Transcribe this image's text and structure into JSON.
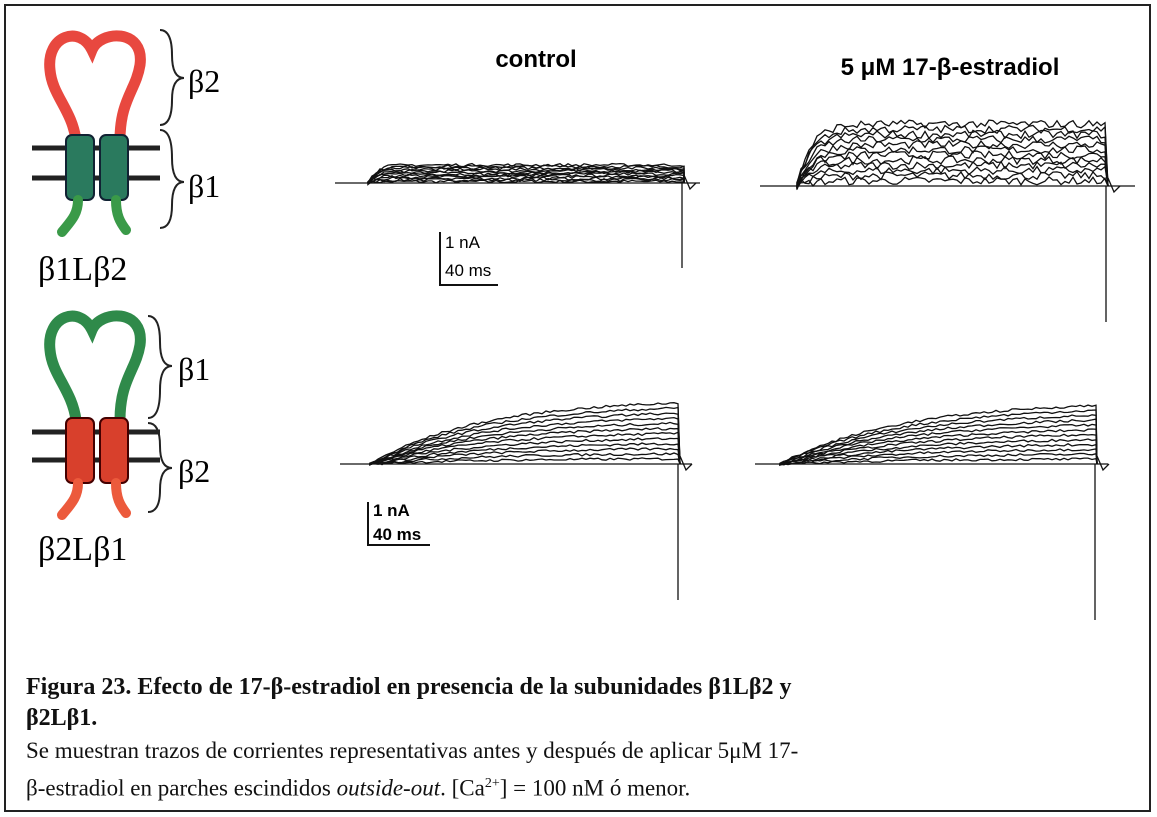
{
  "panels": [
    {
      "construct": "β1Lβ2",
      "loop_label": "β2",
      "tm_label": "β1"
    },
    {
      "construct": "β2Lβ1",
      "loop_label": "β1",
      "tm_label": "β2"
    }
  ],
  "conditions": [
    "control",
    "5 μM 17-β-estradiol"
  ],
  "scale_bars": [
    {
      "current": "1 nA",
      "time": "40 ms"
    },
    {
      "current": "1 nA",
      "time": "40 ms"
    }
  ],
  "caption": {
    "title": [
      "Figura 23. Efecto de 17-β-estradiol en presencia de la subunidades β1Lβ2 y",
      "β2Lβ1."
    ],
    "body": [
      "Se muestran trazos de corrientes representativas antes y después de aplicar 5μM 17-",
      "β-estradiol en parches escindidos ",
      "outside-out",
      ". [Ca",
      "2+",
      "] = 100 nM ó menor."
    ]
  }
}
